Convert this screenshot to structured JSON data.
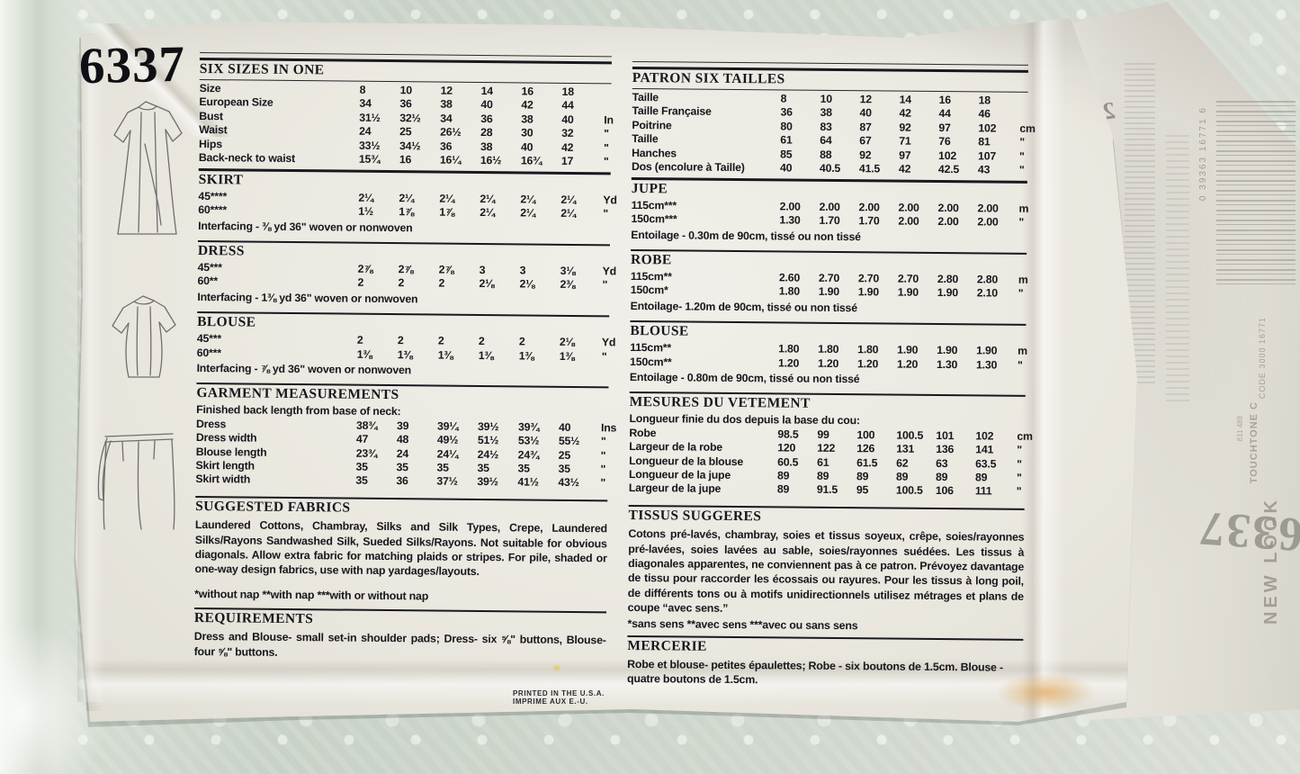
{
  "pattern_number": "6337",
  "english": {
    "size_table": {
      "title": "SIX SIZES IN ONE",
      "rows": [
        {
          "label": "Size",
          "values": [
            "8",
            "10",
            "12",
            "14",
            "16",
            "18"
          ],
          "unit": ""
        },
        {
          "label": "European Size",
          "values": [
            "34",
            "36",
            "38",
            "40",
            "42",
            "44"
          ],
          "unit": ""
        },
        {
          "label": "Bust",
          "values": [
            "31½",
            "32½",
            "34",
            "36",
            "38",
            "40"
          ],
          "unit": "In"
        },
        {
          "label": "Waist",
          "values": [
            "24",
            "25",
            "26½",
            "28",
            "30",
            "32"
          ],
          "unit": "\""
        },
        {
          "label": "Hips",
          "values": [
            "33½",
            "34½",
            "36",
            "38",
            "40",
            "42"
          ],
          "unit": "\""
        },
        {
          "label": "Back-neck to waist",
          "values": [
            "15¾",
            "16",
            "16¼",
            "16½",
            "16¾",
            "17"
          ],
          "unit": "\""
        }
      ]
    },
    "skirt": {
      "title": "SKIRT",
      "rows": [
        {
          "label": "45****",
          "values": [
            "2¼",
            "2¼",
            "2¼",
            "2¼",
            "2¼",
            "2¼"
          ],
          "unit": "Yd"
        },
        {
          "label": "60****",
          "values": [
            "1½",
            "1⅞",
            "1⅞",
            "2¼",
            "2¼",
            "2¼"
          ],
          "unit": "\""
        }
      ],
      "note": "Interfacing - ⅜ yd 36\" woven or nonwoven"
    },
    "dress": {
      "title": "DRESS",
      "rows": [
        {
          "label": "45***",
          "values": [
            "2⅞",
            "2⅞",
            "2⅞",
            "3",
            "3",
            "3⅛"
          ],
          "unit": "Yd"
        },
        {
          "label": "60**",
          "values": [
            "2",
            "2",
            "2",
            "2⅛",
            "2⅛",
            "2⅜"
          ],
          "unit": "\""
        }
      ],
      "note": "Interfacing - 1⅜ yd 36\" woven or nonwoven"
    },
    "blouse": {
      "title": "BLOUSE",
      "rows": [
        {
          "label": "45***",
          "values": [
            "2",
            "2",
            "2",
            "2",
            "2",
            "2⅛"
          ],
          "unit": "Yd"
        },
        {
          "label": "60***",
          "values": [
            "1⅜",
            "1⅜",
            "1⅜",
            "1⅜",
            "1⅜",
            "1⅜"
          ],
          "unit": "\""
        }
      ],
      "note": "Interfacing - ⅞ yd 36\" woven or nonwoven"
    },
    "garment": {
      "title": "GARMENT MEASUREMENTS",
      "intro": "Finished back length from base of neck:",
      "rows": [
        {
          "label": "Dress",
          "values": [
            "38¾",
            "39",
            "39¼",
            "39½",
            "39¾",
            "40"
          ],
          "unit": "Ins"
        },
        {
          "label": "Dress width",
          "values": [
            "47",
            "48",
            "49½",
            "51½",
            "53½",
            "55½"
          ],
          "unit": "\""
        },
        {
          "label": "Blouse length",
          "values": [
            "23¾",
            "24",
            "24¼",
            "24½",
            "24¾",
            "25"
          ],
          "unit": "\""
        },
        {
          "label": "Skirt length",
          "values": [
            "35",
            "35",
            "35",
            "35",
            "35",
            "35"
          ],
          "unit": "\""
        },
        {
          "label": "Skirt width",
          "values": [
            "35",
            "36",
            "37½",
            "39½",
            "41½",
            "43½"
          ],
          "unit": "\""
        }
      ]
    },
    "fabrics": {
      "title": "SUGGESTED FABRICS",
      "body": "Laundered Cottons, Chambray, Silks and Silk Types, Crepe, Laundered Silks/Rayons Sandwashed Silk, Sueded Silks/Rayons. Not suitable for obvious diagonals. Allow extra fabric for matching plaids or stripes. For pile, shaded or one-way design fabrics, use with nap yardages/layouts.",
      "footnote": "*without nap **with nap ***with or without nap"
    },
    "requirements": {
      "title": "REQUIREMENTS",
      "body": "Dress and Blouse- small set-in shoulder pads; Dress- six ⅝\" buttons, Blouse-four ⅝\" buttons."
    }
  },
  "french": {
    "size_table": {
      "title": "PATRON SIX TAILLES",
      "rows": [
        {
          "label": "Taille",
          "values": [
            "8",
            "10",
            "12",
            "14",
            "16",
            "18"
          ],
          "unit": ""
        },
        {
          "label": "Taille Française",
          "values": [
            "36",
            "38",
            "40",
            "42",
            "44",
            "46"
          ],
          "unit": ""
        },
        {
          "label": "Poitrine",
          "values": [
            "80",
            "83",
            "87",
            "92",
            "97",
            "102"
          ],
          "unit": "cm"
        },
        {
          "label": "Taille",
          "values": [
            "61",
            "64",
            "67",
            "71",
            "76",
            "81"
          ],
          "unit": "\""
        },
        {
          "label": "Hanches",
          "values": [
            "85",
            "88",
            "92",
            "97",
            "102",
            "107"
          ],
          "unit": "\""
        },
        {
          "label": "Dos (encolure à Taille)",
          "values": [
            "40",
            "40.5",
            "41.5",
            "42",
            "42.5",
            "43"
          ],
          "unit": "\""
        }
      ]
    },
    "jupe": {
      "title": "JUPE",
      "rows": [
        {
          "label": "115cm***",
          "values": [
            "2.00",
            "2.00",
            "2.00",
            "2.00",
            "2.00",
            "2.00"
          ],
          "unit": "m"
        },
        {
          "label": "150cm***",
          "values": [
            "1.30",
            "1.70",
            "1.70",
            "2.00",
            "2.00",
            "2.00"
          ],
          "unit": "\""
        }
      ],
      "note": "Entoilage - 0.30m de 90cm, tissé ou non tissé"
    },
    "robe": {
      "title": "ROBE",
      "rows": [
        {
          "label": "115cm**",
          "values": [
            "2.60",
            "2.70",
            "2.70",
            "2.70",
            "2.80",
            "2.80"
          ],
          "unit": "m"
        },
        {
          "label": "150cm*",
          "values": [
            "1.80",
            "1.90",
            "1.90",
            "1.90",
            "1.90",
            "2.10"
          ],
          "unit": "\""
        }
      ],
      "note": "Entoilage- 1.20m de 90cm, tissé ou non tissé"
    },
    "blouse": {
      "title": "BLOUSE",
      "rows": [
        {
          "label": "115cm**",
          "values": [
            "1.80",
            "1.80",
            "1.80",
            "1.90",
            "1.90",
            "1.90"
          ],
          "unit": "m"
        },
        {
          "label": "150cm**",
          "values": [
            "1.20",
            "1.20",
            "1.20",
            "1.20",
            "1.30",
            "1.30"
          ],
          "unit": "\""
        }
      ],
      "note": "Entoilage - 0.80m de 90cm, tissé ou non tissé"
    },
    "mesures": {
      "title": "MESURES DU VETEMENT",
      "intro": "Longueur finie du dos depuis la base du cou:",
      "rows": [
        {
          "label": "Robe",
          "values": [
            "98.5",
            "99",
            "100",
            "100.5",
            "101",
            "102"
          ],
          "unit": "cm"
        },
        {
          "label": "Largeur de la robe",
          "values": [
            "120",
            "122",
            "126",
            "131",
            "136",
            "141"
          ],
          "unit": "\""
        },
        {
          "label": "Longueur de la blouse",
          "values": [
            "60.5",
            "61",
            "61.5",
            "62",
            "63",
            "63.5"
          ],
          "unit": "\""
        },
        {
          "label": "Longueur de la jupe",
          "values": [
            "89",
            "89",
            "89",
            "89",
            "89",
            "89"
          ],
          "unit": "\""
        },
        {
          "label": "Largeur de la jupe",
          "values": [
            "89",
            "91.5",
            "95",
            "100.5",
            "106",
            "111"
          ],
          "unit": "\""
        }
      ]
    },
    "tissus": {
      "title": "TISSUS SUGGERES",
      "body": "Cotons pré-lavés, chambray, soies et tissus soyeux, crêpe, soies/rayonnes pré-lavées, soies lavées au sable, soies/rayonnes suédées. Les tissus à diagonales apparentes, ne conviennent pas à ce patron. Prévoyez davantage de tissu pour raccorder les écossais ou rayures. Pour les tissus à long poil, de différents tons ou à motifs unidirectionnels utilisez métrages et plans de coupe “avec sens.”",
      "footnote": "*sans sens **avec sens ***avec ou sans sens"
    },
    "mercerie": {
      "title": "MERCERIE",
      "body": "Robe et blouse- petites épaulettes; Robe - six boutons de 1.5cm. Blouse - quatre boutons de 1.5cm."
    }
  },
  "footer": {
    "line1": "PRINTED IN THE U.S.A.",
    "line2": "IMPRIME AUX E.-U."
  },
  "showthrough": {
    "barcode_digits": "0 39363 16771 6",
    "code_label": "CODE 3000 16771",
    "touchtone": "TOUCHTONE C",
    "touchtone_code": "811 489",
    "pattern_number_reversed": "6337",
    "brand_vertical": "NEW LOOK",
    "flap_character": "2"
  }
}
